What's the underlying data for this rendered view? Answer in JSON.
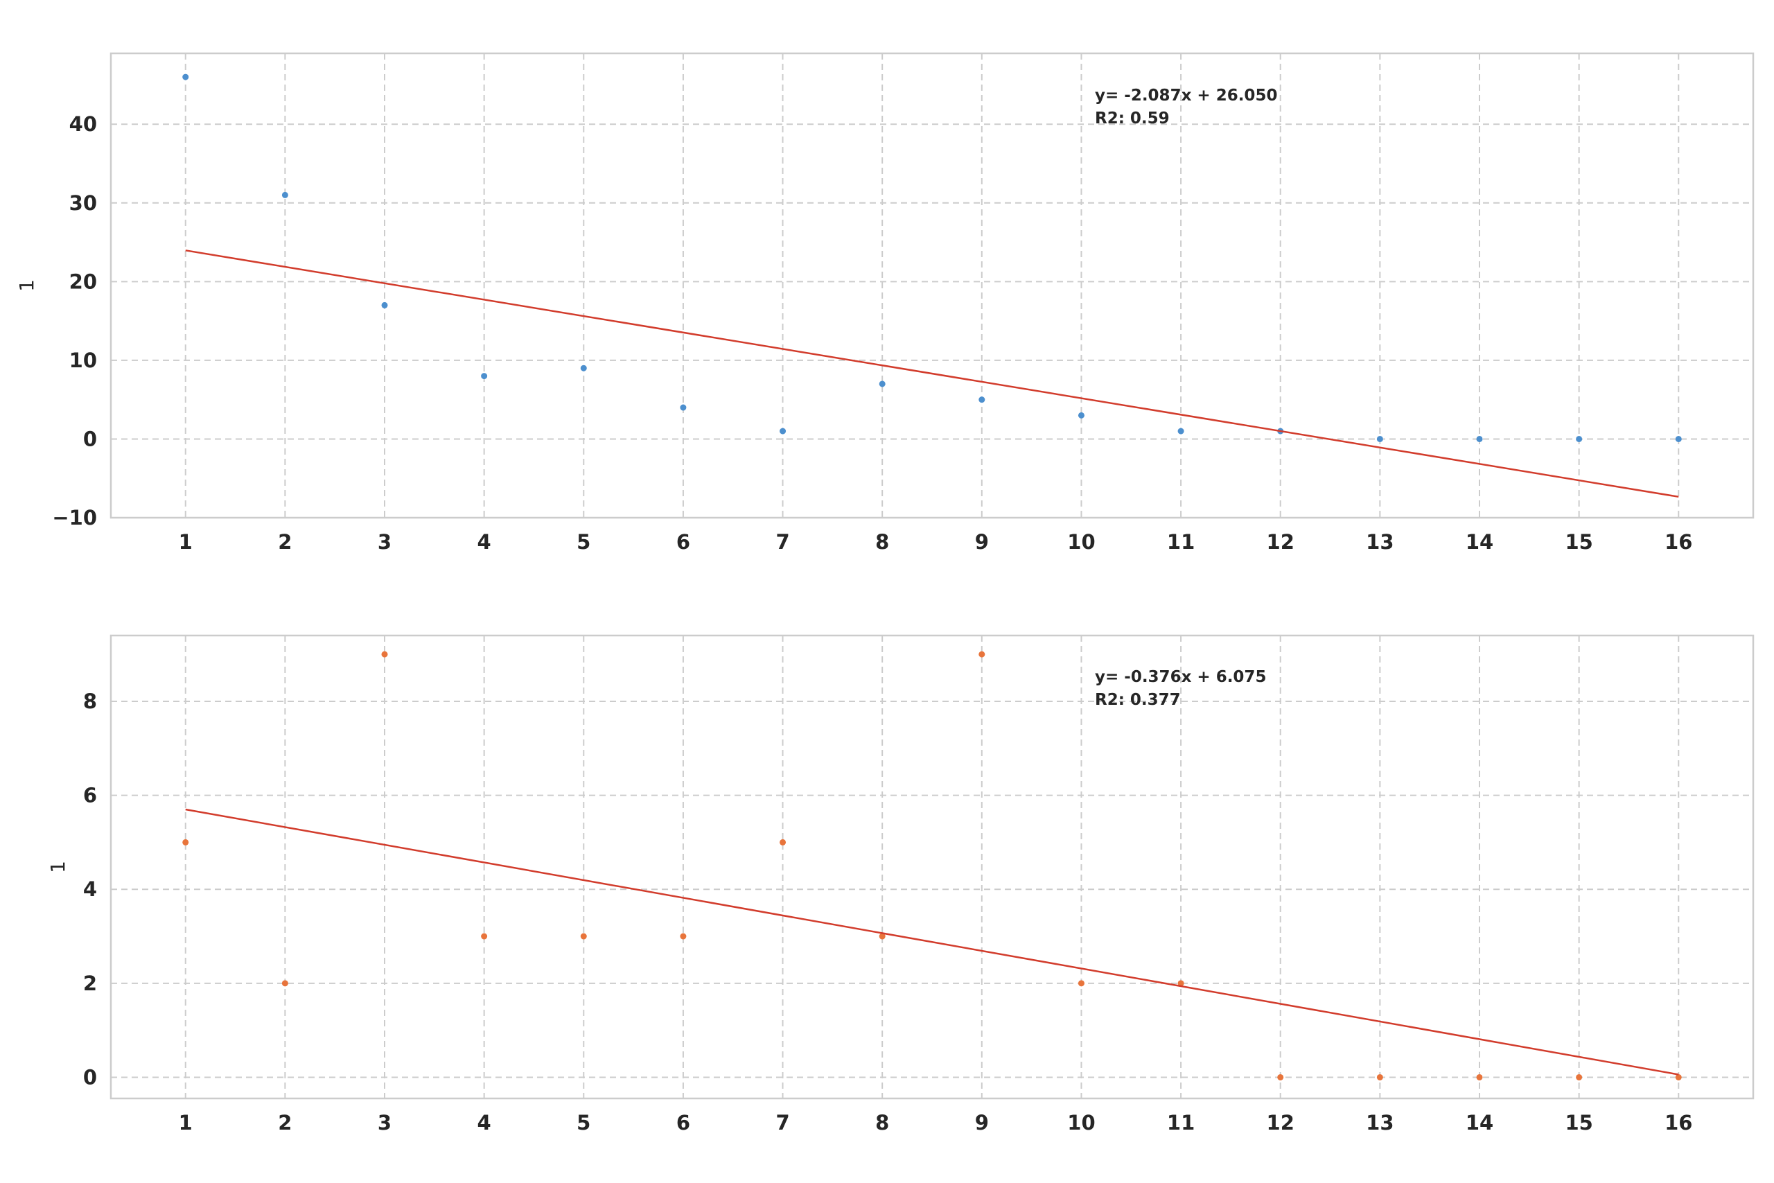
{
  "chart_data": [
    {
      "type": "scatter",
      "title": "",
      "xlabel": "",
      "ylabel": "1",
      "xlim": [
        0.25,
        16.75
      ],
      "ylim": [
        -10,
        49
      ],
      "xticks": [
        1,
        2,
        3,
        4,
        5,
        6,
        7,
        8,
        9,
        10,
        11,
        12,
        13,
        14,
        15,
        16
      ],
      "yticks": [
        -10,
        0,
        10,
        20,
        30,
        40
      ],
      "ytick_labels": [
        "−10",
        "0",
        "10",
        "20",
        "30",
        "40"
      ],
      "grid": true,
      "point_color": "#4c8fce",
      "fit_color": "#d23c2c",
      "series": [
        {
          "x": [
            1,
            2,
            3,
            4,
            5,
            6,
            7,
            8,
            9,
            10,
            11,
            12,
            13,
            14,
            15,
            16
          ],
          "y": [
            46,
            31,
            17,
            8,
            9,
            4,
            1,
            7,
            5,
            3,
            1,
            1,
            0,
            0,
            0,
            0
          ]
        }
      ],
      "fit_line": {
        "slope": -2.087,
        "intercept": 26.05,
        "x": [
          1,
          16
        ]
      },
      "annotation": [
        "y= -2.087x + 26.050",
        "R2: 0.59"
      ]
    },
    {
      "type": "scatter",
      "title": "",
      "xlabel": "",
      "ylabel": "1",
      "xlim": [
        0.25,
        16.75
      ],
      "ylim": [
        -0.45,
        9.4
      ],
      "xticks": [
        1,
        2,
        3,
        4,
        5,
        6,
        7,
        8,
        9,
        10,
        11,
        12,
        13,
        14,
        15,
        16
      ],
      "yticks": [
        0,
        2,
        4,
        6,
        8
      ],
      "ytick_labels": [
        "0",
        "2",
        "4",
        "6",
        "8"
      ],
      "grid": true,
      "point_color": "#e8743b",
      "fit_color": "#d23c2c",
      "series": [
        {
          "x": [
            1,
            2,
            3,
            4,
            5,
            6,
            7,
            8,
            9,
            10,
            11,
            12,
            13,
            14,
            15,
            16
          ],
          "y": [
            5,
            2,
            9,
            3,
            3,
            3,
            5,
            3,
            9,
            2,
            2,
            0,
            0,
            0,
            0,
            0
          ]
        }
      ],
      "fit_line": {
        "slope": -0.376,
        "intercept": 6.075,
        "x": [
          1,
          16
        ]
      },
      "annotation": [
        "y= -0.376x + 6.075",
        "R2: 0.377"
      ]
    }
  ]
}
